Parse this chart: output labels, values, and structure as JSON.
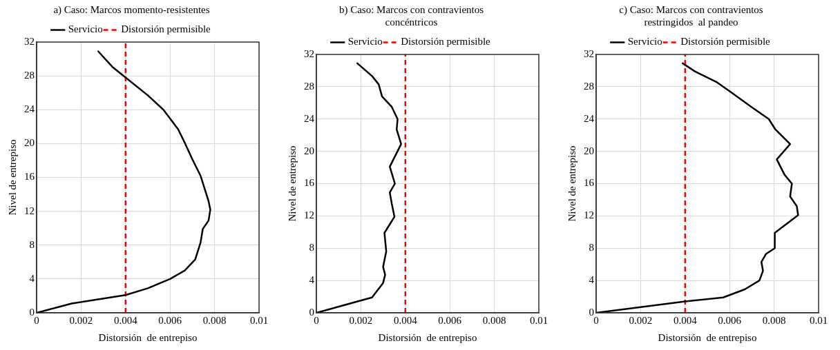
{
  "chart_data": [
    {
      "type": "line",
      "title": "a) Caso: Marcos momento-resistentes",
      "xlabel": "Distorsión  de entrepiso",
      "ylabel": "Nivel de entrepiso",
      "xlim": [
        0,
        0.01
      ],
      "xticks": [
        0,
        0.002,
        0.004,
        0.006,
        0.008,
        0.01
      ],
      "ylim": [
        0,
        32
      ],
      "yticks": [
        0,
        4,
        8,
        12,
        16,
        20,
        24,
        28,
        32
      ],
      "grid": true,
      "legend": "top",
      "marker": "none",
      "line_style": "solid",
      "series": [
        {
          "name": "Servicio",
          "color": "#000000",
          "x": [
            0,
            0.00158,
            0.004,
            0.005,
            0.006,
            0.00666,
            0.00713,
            0.00737,
            0.00747,
            0.00773,
            0.00781,
            0.00773,
            0.00737,
            0.00701,
            0.00666,
            0.00636,
            0.0057,
            0.005,
            0.004,
            0.00343,
            0.00277
          ],
          "values": [
            0,
            1.1,
            2.1,
            2.9,
            4,
            5,
            6.3,
            8.3,
            9.9,
            10.9,
            12.2,
            13.2,
            16.2,
            18.1,
            20.1,
            21.7,
            24,
            25.7,
            27.8,
            29,
            30.9
          ]
        }
      ],
      "ref_lines": [
        {
          "axis": "x",
          "value": 0.004,
          "label": "Distorsión permisible",
          "color": "#ff0000",
          "line_style": "dashed"
        }
      ]
    },
    {
      "type": "line",
      "title": "b) Caso: Marcos con contravientos concéntricos",
      "xlabel": "Distorsión  de entrepiso",
      "ylabel": "Nivel de entrepiso",
      "xlim": [
        0,
        0.01
      ],
      "xticks": [
        0,
        0.002,
        0.004,
        0.006,
        0.008,
        0.01
      ],
      "ylim": [
        0,
        32
      ],
      "yticks": [
        0,
        4,
        8,
        12,
        16,
        20,
        24,
        28,
        32
      ],
      "grid": true,
      "legend": "top",
      "marker": "none",
      "line_style": "solid",
      "series": [
        {
          "name": "Servicio",
          "color": "#000000",
          "x": [
            0,
            0.0025,
            0.003,
            0.00309,
            0.003,
            0.00314,
            0.00306,
            0.00351,
            0.00339,
            0.0033,
            0.00353,
            0.0033,
            0.00381,
            0.00361,
            0.00365,
            0.00339,
            0.00295,
            0.0028,
            0.00251,
            0.00184
          ],
          "values": [
            0,
            1.9,
            3.7,
            4.7,
            5.7,
            7.6,
            9.9,
            11.9,
            13.5,
            14.9,
            16,
            18.1,
            20.9,
            22.7,
            24,
            25.5,
            26.8,
            28.3,
            29.3,
            30.9
          ]
        }
      ],
      "ref_lines": [
        {
          "axis": "x",
          "value": 0.004,
          "label": "Distorsión permisible",
          "color": "#ff0000",
          "line_style": "dashed"
        }
      ]
    },
    {
      "type": "line",
      "title": "c) Caso: Marcos con contravientos restringidos  al pandeo",
      "xlabel": "Distorsión  de entrepiso",
      "ylabel": "Nivel de entrepiso",
      "xlim": [
        0,
        0.01
      ],
      "xticks": [
        0,
        0.002,
        0.004,
        0.006,
        0.008,
        0.01
      ],
      "ylim": [
        0,
        32
      ],
      "yticks": [
        0,
        4,
        8,
        12,
        16,
        20,
        24,
        28,
        32
      ],
      "grid": true,
      "legend": "top",
      "marker": "none",
      "line_style": "solid",
      "series": [
        {
          "name": "Servicio",
          "color": "#000000",
          "x": [
            0,
            0.004,
            0.00571,
            0.00668,
            0.00734,
            0.0075,
            0.00743,
            0.00764,
            0.00803,
            0.00803,
            0.00908,
            0.00902,
            0.00872,
            0.0088,
            0.00847,
            0.00812,
            0.00872,
            0.00806,
            0.00776,
            0.00698,
            0.00607,
            0.0054,
            0.00444,
            0.00389
          ],
          "values": [
            0,
            1.4,
            1.9,
            2.9,
            4,
            5.2,
            6.3,
            7.3,
            8,
            9.9,
            12.1,
            13.2,
            14.4,
            16,
            17.1,
            19,
            20.9,
            22.7,
            24,
            25.5,
            27.3,
            28.6,
            29.9,
            30.9
          ]
        }
      ],
      "ref_lines": [
        {
          "axis": "x",
          "value": 0.004,
          "label": "Distorsión permisible",
          "color": "#ff0000",
          "line_style": "dashed"
        }
      ]
    }
  ]
}
